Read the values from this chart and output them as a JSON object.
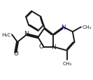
{
  "bg_color": "#ffffff",
  "line_color": "#1a1a1a",
  "n_color": "#1414c8",
  "line_width": 1.4,
  "figsize": [
    1.33,
    1.15
  ],
  "dpi": 100,
  "xlim": [
    0.5,
    9.5
  ],
  "ylim": [
    1.5,
    9.0
  ]
}
